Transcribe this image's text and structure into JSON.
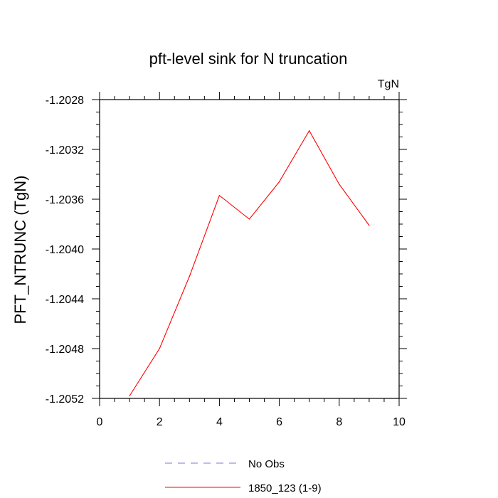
{
  "chart_data": {
    "type": "line",
    "title": "pft-level sink for N truncation",
    "units_label": "TgN",
    "xlabel": "",
    "ylabel": "PFT_NTRUNC  (TgN)",
    "xlim": [
      0,
      10
    ],
    "ylim": [
      -1.2052,
      -1.2028
    ],
    "x_ticks": [
      0,
      2,
      4,
      6,
      8,
      10
    ],
    "x_tick_labels": [
      "0",
      "2",
      "4",
      "6",
      "8",
      "10"
    ],
    "y_ticks": [
      -1.2028,
      -1.2032,
      -1.2036,
      -1.204,
      -1.2044,
      -1.2048,
      -1.2052
    ],
    "y_tick_labels": [
      "-1.2028",
      "-1.2032",
      "-1.2036",
      "-1.2040",
      "-1.2044",
      "-1.2048",
      "-1.2052"
    ],
    "grid": false,
    "legend_position": "bottom",
    "series": [
      {
        "name": "1850_123 (1-9)",
        "color": "#ff0000",
        "style": "solid",
        "x": [
          1,
          2,
          3,
          4,
          5,
          6,
          7,
          8,
          9
        ],
        "values": [
          -1.20518,
          -1.2048,
          -1.20422,
          -1.20357,
          -1.20376,
          -1.20346,
          -1.20305,
          -1.20348,
          -1.20381
        ]
      }
    ],
    "legend": [
      {
        "label": "No Obs",
        "color": "#7b7bd6",
        "style": "dashed"
      },
      {
        "label": "1850_123 (1-9)",
        "color": "#ff0000",
        "style": "solid"
      }
    ]
  }
}
